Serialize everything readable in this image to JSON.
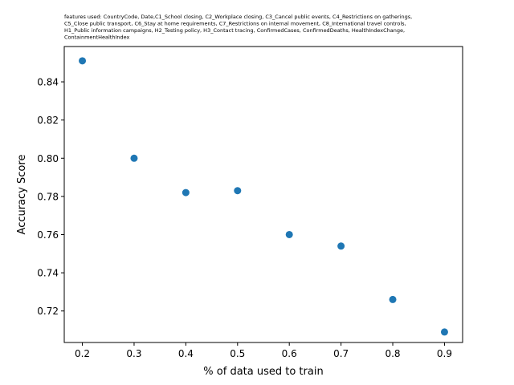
{
  "chart_data": {
    "type": "scatter",
    "title_lines": [
      "features used: CountryCode, Date,C1_School closing, C2_Workplace closing, C3_Cancel public events, C4_Restrictions on gatherings,",
      "C5_Close public transport, C6_Stay at home requirements, C7_Restrictions on internal movement, C8_International travel controls,",
      "H1_Public information campaigns, H2_Testing policy, H3_Contact tracing, ConfirmedCases, ConfirmedDeaths, HealthIndexChange,",
      "ContainmentHealthIndex"
    ],
    "xlabel": "% of data used to train",
    "ylabel": "Accuracy Score",
    "xlim": [
      0.165,
      0.935
    ],
    "ylim": [
      0.7035,
      0.8585
    ],
    "xticks": [
      0.2,
      0.3,
      0.4,
      0.5,
      0.6,
      0.7,
      0.8,
      0.9
    ],
    "xtick_labels": [
      "0.2",
      "0.3",
      "0.4",
      "0.5",
      "0.6",
      "0.7",
      "0.8",
      "0.9"
    ],
    "yticks": [
      0.72,
      0.74,
      0.76,
      0.78,
      0.8,
      0.82,
      0.84
    ],
    "ytick_labels": [
      "0.72",
      "0.74",
      "0.76",
      "0.78",
      "0.80",
      "0.82",
      "0.84"
    ],
    "grid": false,
    "color": "#1f77b4",
    "points": [
      {
        "x": 0.2,
        "y": 0.851
      },
      {
        "x": 0.3,
        "y": 0.8
      },
      {
        "x": 0.4,
        "y": 0.782
      },
      {
        "x": 0.5,
        "y": 0.783
      },
      {
        "x": 0.6,
        "y": 0.76
      },
      {
        "x": 0.7,
        "y": 0.754
      },
      {
        "x": 0.8,
        "y": 0.726
      },
      {
        "x": 0.9,
        "y": 0.709
      }
    ]
  }
}
